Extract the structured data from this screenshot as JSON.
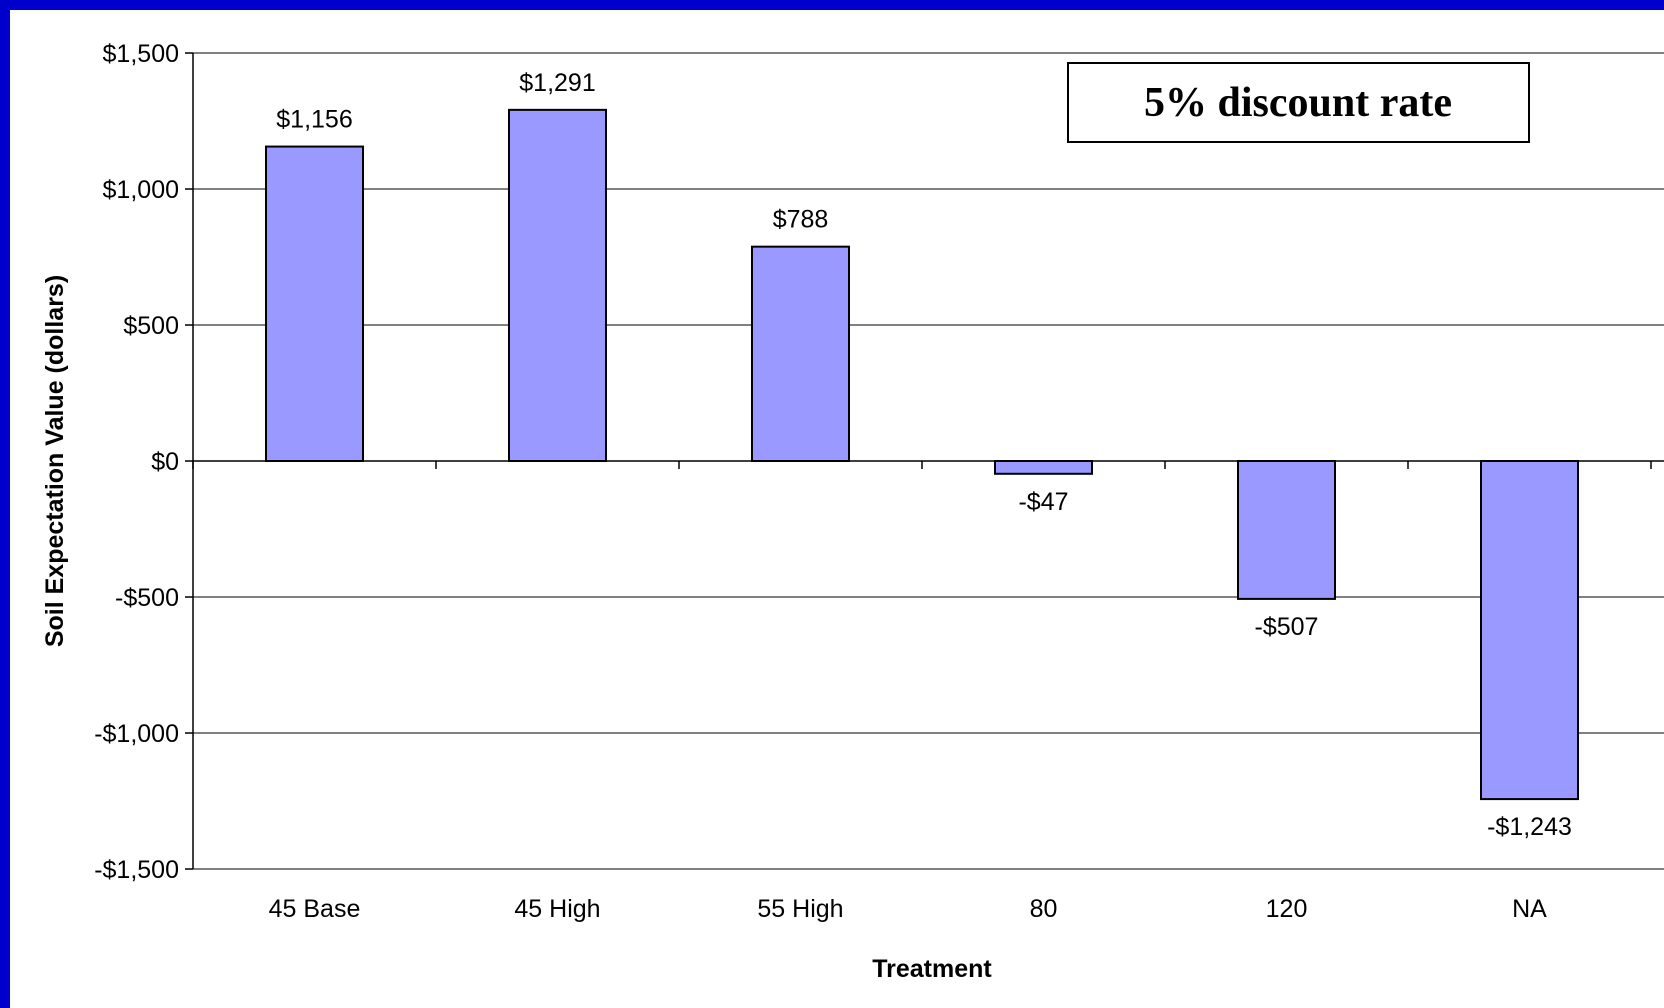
{
  "colors": {
    "background_border": "#0000CC",
    "plot_background": "#FFFFFF",
    "bar_fill": "#9999FF",
    "bar_stroke": "#000000",
    "gridline": "#000000"
  },
  "chart_data": {
    "type": "bar",
    "categories": [
      "45 Base",
      "45 High",
      "55 High",
      "80",
      "120",
      "NA"
    ],
    "values": [
      1156,
      1291,
      788,
      -47,
      -507,
      -1243
    ],
    "data_labels": [
      "$1,156",
      "$1,291",
      "$788",
      "-$47",
      "-$507",
      "-$1,243"
    ],
    "title": "",
    "xlabel": "Treatment",
    "ylabel": "Soil Expectation Value (dollars)",
    "ylim": [
      -1500,
      1500
    ],
    "yticks": [
      1500,
      1000,
      500,
      0,
      -500,
      -1000,
      -1500
    ],
    "ytick_labels": [
      "$1,500",
      "$1,000",
      "$500",
      "$0",
      "-$500",
      "-$1,000",
      "-$1,500"
    ],
    "grid": "horizontal major gridlines on",
    "legend": "none",
    "annotation": "5% discount rate"
  }
}
